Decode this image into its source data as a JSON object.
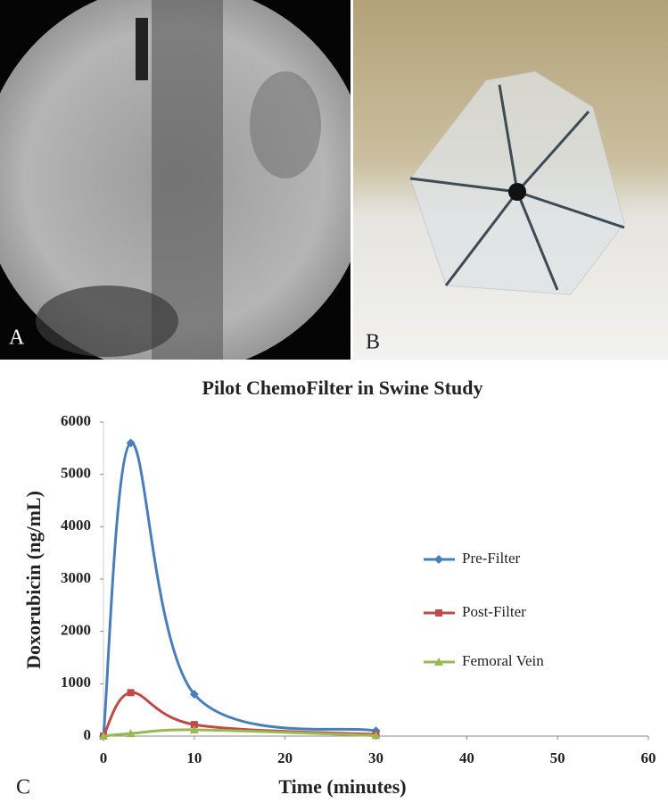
{
  "panel_labels": [
    "A",
    "B",
    "C"
  ],
  "chart_data": {
    "type": "scatter",
    "title": "Pilot ChemoFilter in Swine Study",
    "x_label": "Time (minutes)",
    "y_label": "Doxorubicin (ng/mL)",
    "xlim": [
      0,
      60
    ],
    "xticks": [
      0,
      10,
      20,
      30,
      40,
      50,
      60
    ],
    "ylim": [
      0,
      6000
    ],
    "yticks": [
      0,
      1000,
      2000,
      3000,
      4000,
      5000,
      6000
    ],
    "smooth": true,
    "legend": "right",
    "series": [
      {
        "name": "Pre-Filter",
        "color": "#4a7ebb",
        "marker": "diamond",
        "x": [
          0,
          3,
          10,
          30
        ],
        "values": [
          0,
          5600,
          800,
          100
        ]
      },
      {
        "name": "Post-Filter",
        "color": "#be4b48",
        "marker": "square",
        "x": [
          0,
          3,
          10,
          30
        ],
        "values": [
          0,
          830,
          220,
          30
        ]
      },
      {
        "name": "Femoral Vein",
        "color": "#98b954",
        "marker": "triangle",
        "x": [
          0,
          3,
          10,
          30
        ],
        "values": [
          0,
          50,
          120,
          10
        ]
      }
    ]
  }
}
